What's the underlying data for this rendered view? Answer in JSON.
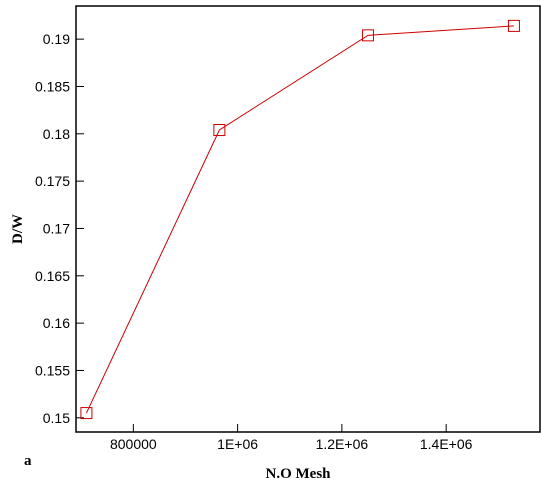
{
  "chart_data": {
    "type": "line",
    "title": "",
    "xlabel": "N.O Mesh",
    "ylabel": "D/W",
    "panel_label": "a",
    "xlim": [
      690000,
      1580000
    ],
    "ylim": [
      0.1485,
      0.1935
    ],
    "x_ticks": [
      800000,
      1000000,
      1200000,
      1400000
    ],
    "x_tick_labels": [
      "800000",
      "1E+06",
      "1.2E+06",
      "1.4E+06"
    ],
    "y_ticks": [
      0.15,
      0.155,
      0.16,
      0.165,
      0.17,
      0.175,
      0.18,
      0.185,
      0.19
    ],
    "y_tick_labels": [
      "0.15",
      "0.155",
      "0.16",
      "0.165",
      "0.17",
      "0.175",
      "0.18",
      "0.185",
      "0.19"
    ],
    "grid": false,
    "series": [
      {
        "x": [
          710000,
          965000,
          1250000,
          1530000
        ],
        "y": [
          0.1505,
          0.1804,
          0.1904,
          0.1914
        ],
        "color": "#cc0000",
        "marker": "square-open"
      }
    ]
  }
}
